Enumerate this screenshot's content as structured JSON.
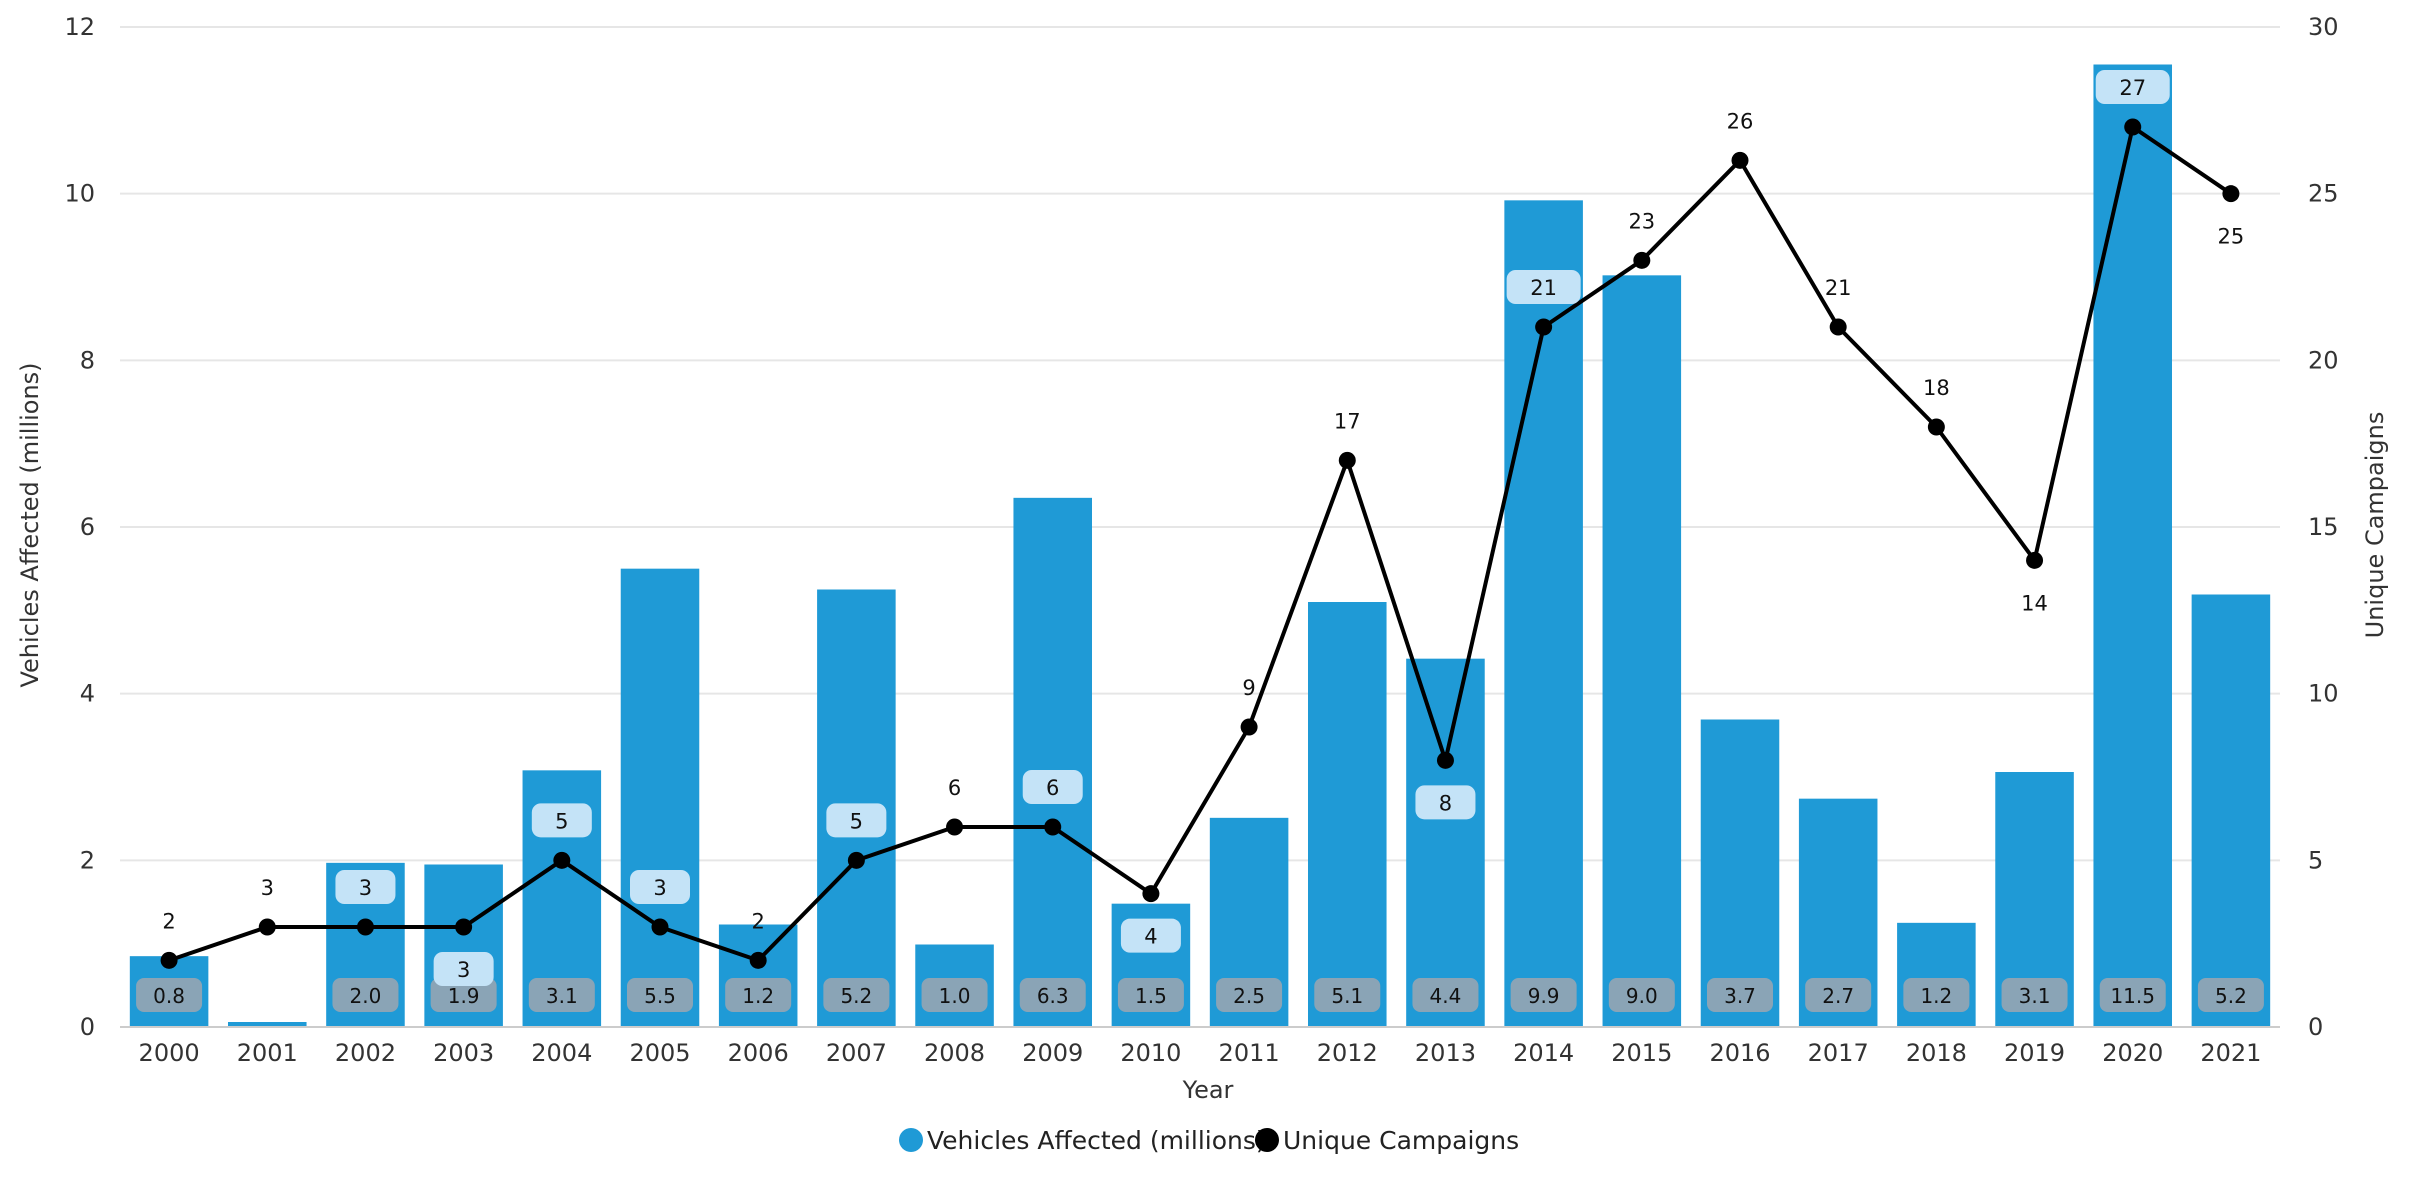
{
  "chart_data": {
    "type": "bar",
    "xlabel": "Year",
    "ylabel": "Vehicles Affected (millions)",
    "y2label": "Unique Campaigns",
    "ylim": [
      0,
      12
    ],
    "y2lim": [
      0,
      30
    ],
    "yticks": [
      "0",
      "2",
      "4",
      "6",
      "8",
      "10",
      "12"
    ],
    "y2ticks": [
      "0",
      "5",
      "10",
      "15",
      "20",
      "25",
      "30"
    ],
    "categories": [
      "2000",
      "2001",
      "2002",
      "2003",
      "2004",
      "2005",
      "2006",
      "2007",
      "2008",
      "2009",
      "2010",
      "2011",
      "2012",
      "2013",
      "2014",
      "2015",
      "2016",
      "2017",
      "2018",
      "2019",
      "2020",
      "2021"
    ],
    "series": [
      {
        "name": "Vehicles Affected (millions)",
        "type": "bar",
        "axis": "left",
        "color": "#1f9ad6",
        "values": [
          0.85,
          0.06,
          1.97,
          1.95,
          3.08,
          5.5,
          1.23,
          5.25,
          0.99,
          6.35,
          1.48,
          2.51,
          5.1,
          4.42,
          9.92,
          9.02,
          3.69,
          2.74,
          1.25,
          3.06,
          11.55,
          5.19
        ],
        "labels": [
          "0.8",
          "",
          "2.0",
          "1.9",
          "3.1",
          "5.5",
          "1.2",
          "5.2",
          "1.0",
          "6.3",
          "1.5",
          "2.5",
          "5.1",
          "4.4",
          "9.9",
          "9.0",
          "3.7",
          "2.7",
          "1.2",
          "3.1",
          "11.5",
          "5.2"
        ]
      },
      {
        "name": "Unique Campaigns",
        "type": "line",
        "axis": "right",
        "color": "#000000",
        "values": [
          2,
          3,
          3,
          3,
          5,
          3,
          2,
          5,
          6,
          6,
          4,
          9,
          17,
          8,
          21,
          23,
          26,
          21,
          18,
          14,
          27,
          25
        ],
        "labels": [
          "2",
          "3",
          "3",
          "3",
          "5",
          "3",
          "2",
          "5",
          "6",
          "6",
          "4",
          "9",
          "17",
          "8",
          "21",
          "23",
          "26",
          "21",
          "18",
          "14",
          "27",
          "25"
        ],
        "label_positions": [
          "above",
          "above",
          "above",
          "below",
          "above",
          "above",
          "above",
          "above",
          "above",
          "above",
          "below",
          "above",
          "above",
          "below",
          "above",
          "above",
          "above",
          "above",
          "above",
          "below",
          "above",
          "below"
        ],
        "boxed": [
          false,
          false,
          true,
          true,
          true,
          true,
          false,
          true,
          false,
          true,
          true,
          false,
          false,
          true,
          true,
          false,
          false,
          false,
          false,
          false,
          true,
          false
        ]
      }
    ],
    "legend": {
      "position": "bottom-center",
      "items": [
        {
          "label": "Vehicles Affected (millions)",
          "color": "#1f9ad6"
        },
        {
          "label": "Unique Campaigns",
          "color": "#000000"
        }
      ]
    },
    "grid": true
  }
}
